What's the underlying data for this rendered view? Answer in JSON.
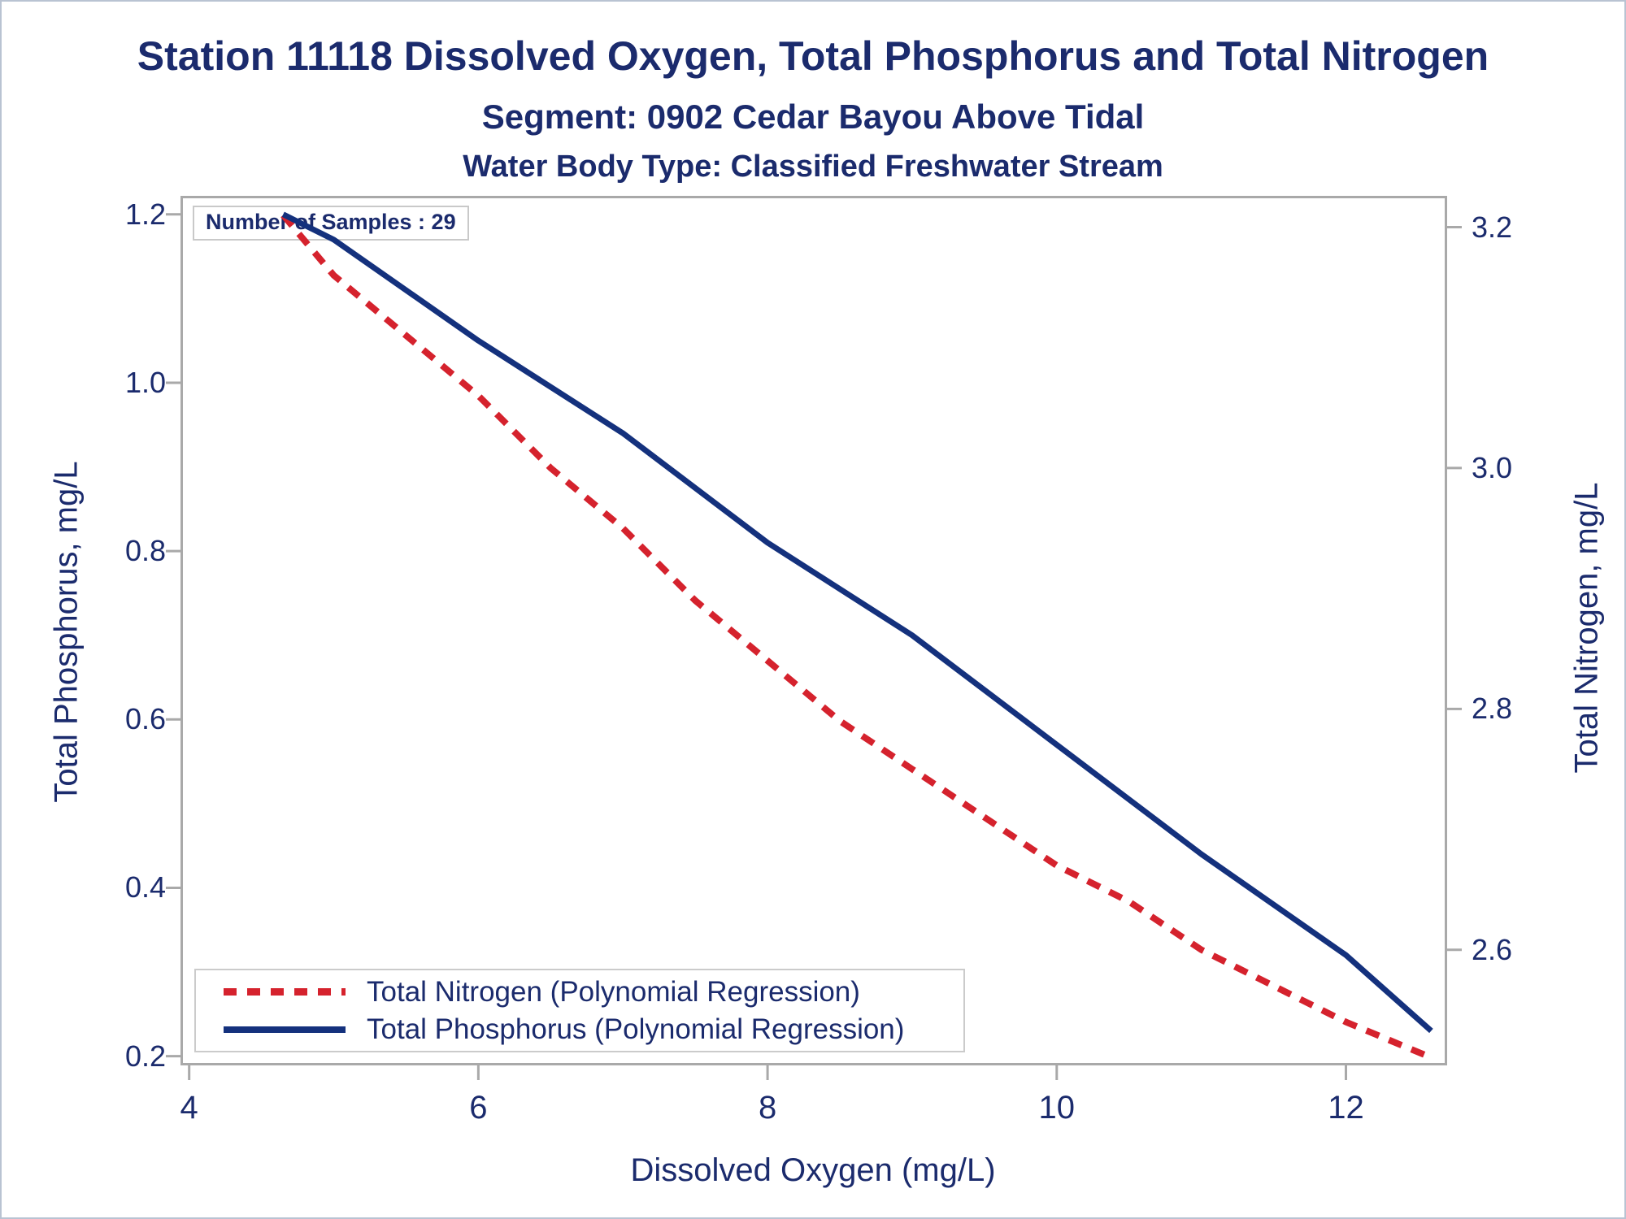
{
  "titles": {
    "line1": "Station 11118  Dissolved Oxygen, Total Phosphorus and Total Nitrogen",
    "line2": "Segment: 0902  Cedar Bayou Above Tidal",
    "line3": "Water Body Type: Classified Freshwater Stream"
  },
  "annotation": {
    "text": "Number of Samples : 29"
  },
  "legend": {
    "items": [
      {
        "label": "Total Nitrogen (Polynomial Regression)",
        "style": "dashed",
        "color": "#d5222d"
      },
      {
        "label": "Total Phosphorus (Polynomial Regression)",
        "style": "solid",
        "color": "#14317d"
      }
    ]
  },
  "colors": {
    "navy_text": "#1b2b6d",
    "navy_line": "#14317d",
    "red_line": "#d5222d",
    "frame_gray": "#a9a9a9"
  },
  "chart_data": {
    "type": "line",
    "title": "Station 11118  Dissolved Oxygen, Total Phosphorus and Total Nitrogen",
    "subtitle": "Segment: 0902  Cedar Bayou Above Tidal",
    "subtitle2": "Water Body Type: Classified Freshwater Stream",
    "grid": false,
    "legend_position": "inside bottom-left",
    "annotations": [
      "Number of Samples : 29"
    ],
    "x_axis": {
      "label": "Dissolved Oxygen (mg/L)",
      "range": [
        3.94,
        12.7
      ],
      "tick_values": [
        4,
        6,
        8,
        10,
        12
      ],
      "tick_labels": [
        "4",
        "6",
        "8",
        "10",
        "12"
      ]
    },
    "y_left": {
      "label": "Total Phosphorus, mg/L",
      "range": [
        0.189,
        1.222
      ],
      "tick_values": [
        0.2,
        0.4,
        0.6,
        0.8,
        1.0,
        1.2
      ],
      "tick_labels": [
        "0.2",
        "0.4",
        "0.6",
        "0.8",
        "1.0",
        "1.2"
      ]
    },
    "y_right": {
      "label": "Total Nitrogen, mg/L",
      "range": [
        2.504,
        3.226
      ],
      "tick_values": [
        2.6,
        2.8,
        3.0,
        3.2
      ],
      "tick_labels": [
        "2.6",
        "2.8",
        "3.0",
        "3.2"
      ]
    },
    "series": [
      {
        "name": "Total Nitrogen (Polynomial Regression)",
        "axis": "right",
        "style": "dashed",
        "color": "#d5222d",
        "stroke_width": 8,
        "x": [
          4.65,
          5,
          5.5,
          6,
          6.5,
          7,
          7.5,
          8,
          8.5,
          9,
          9.5,
          10,
          10.5,
          11,
          11.5,
          12,
          12.6
        ],
        "y": [
          3.21,
          3.16,
          3.11,
          3.06,
          3.0,
          2.95,
          2.89,
          2.84,
          2.79,
          2.75,
          2.71,
          2.67,
          2.64,
          2.6,
          2.57,
          2.54,
          2.51
        ]
      },
      {
        "name": "Total Phosphorus (Polynomial Regression)",
        "axis": "left",
        "style": "solid",
        "color": "#14317d",
        "stroke_width": 7,
        "x": [
          4.65,
          5,
          6,
          7,
          8,
          9,
          10,
          11,
          12,
          12.59
        ],
        "y": [
          1.2,
          1.17,
          1.05,
          0.94,
          0.81,
          0.7,
          0.57,
          0.44,
          0.32,
          0.23
        ]
      }
    ]
  }
}
